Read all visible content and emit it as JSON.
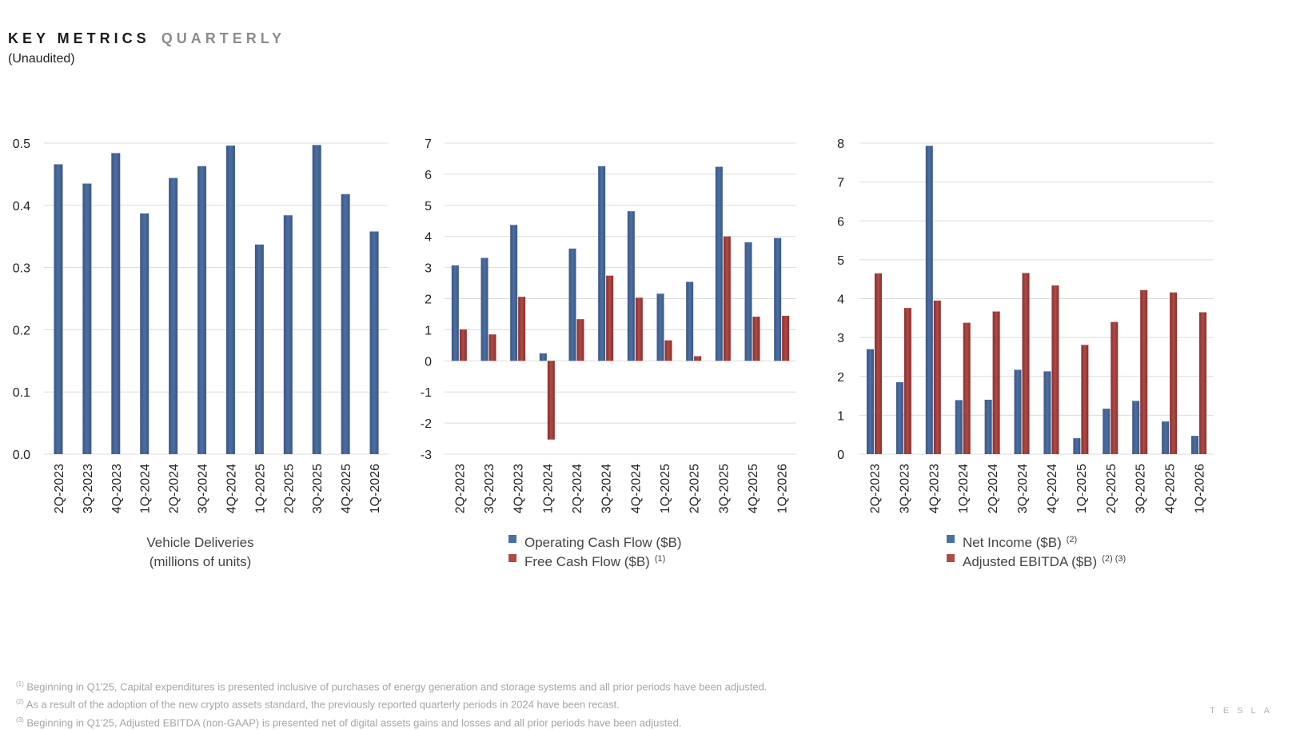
{
  "header": {
    "title_main": "KEY METRICS",
    "title_accent": "QUARTERLY",
    "subtitle": "(Unaudited)"
  },
  "colors": {
    "blue": "#4a6fa5",
    "blue_dark": "#3b5782",
    "red": "#b04a46",
    "red_dark": "#8a2f2c",
    "grid": "#dcdcdc"
  },
  "chart_data": [
    {
      "type": "bar",
      "categories": [
        "2Q-2023",
        "3Q-2023",
        "4Q-2023",
        "1Q-2024",
        "2Q-2024",
        "3Q-2024",
        "4Q-2024",
        "1Q-2025",
        "2Q-2025",
        "3Q-2025",
        "4Q-2025",
        "1Q-2026"
      ],
      "series": [
        {
          "name": "Vehicle Deliveries",
          "values": [
            0.466,
            0.435,
            0.484,
            0.387,
            0.444,
            0.463,
            0.496,
            0.337,
            0.384,
            0.497,
            0.418,
            0.358
          ]
        }
      ],
      "ylim": [
        0,
        0.5
      ],
      "yticks": [
        "0.0",
        "0.1",
        "0.2",
        "0.3",
        "0.4",
        "0.5"
      ],
      "ytick_values": [
        0,
        0.1,
        0.2,
        0.3,
        0.4,
        0.5
      ],
      "xlabel_lines": [
        "Vehicle Deliveries",
        "(millions of units)"
      ],
      "grid": true
    },
    {
      "type": "bar",
      "categories": [
        "2Q-2023",
        "3Q-2023",
        "4Q-2023",
        "1Q-2024",
        "2Q-2024",
        "3Q-2024",
        "4Q-2024",
        "1Q-2025",
        "2Q-2025",
        "3Q-2025",
        "4Q-2025",
        "1Q-2026"
      ],
      "series": [
        {
          "name": "Operating Cash Flow ($B)",
          "sup": "",
          "values": [
            3.07,
            3.31,
            4.37,
            0.24,
            3.61,
            6.26,
            4.81,
            2.16,
            2.54,
            6.24,
            3.81,
            3.95
          ]
        },
        {
          "name": "Free Cash Flow ($B)",
          "sup": "(1)",
          "values": [
            1.01,
            0.85,
            2.06,
            -2.53,
            1.34,
            2.74,
            2.03,
            0.66,
            0.15,
            4.0,
            1.42,
            1.45
          ]
        }
      ],
      "ylim": [
        -3,
        7
      ],
      "yticks": [
        "-3",
        "-2",
        "-1",
        "0",
        "1",
        "2",
        "3",
        "4",
        "5",
        "6",
        "7"
      ],
      "ytick_values": [
        -3,
        -2,
        -1,
        0,
        1,
        2,
        3,
        4,
        5,
        6,
        7
      ],
      "grid": true
    },
    {
      "type": "bar",
      "categories": [
        "2Q-2023",
        "3Q-2023",
        "4Q-2023",
        "1Q-2024",
        "2Q-2024",
        "3Q-2024",
        "4Q-2024",
        "1Q-2025",
        "2Q-2025",
        "3Q-2025",
        "4Q-2025",
        "1Q-2026"
      ],
      "series": [
        {
          "name": "Net Income ($B)",
          "sup": "(2)",
          "values": [
            2.7,
            1.85,
            7.93,
            1.39,
            1.4,
            2.17,
            2.13,
            0.41,
            1.17,
            1.37,
            0.84,
            0.47
          ]
        },
        {
          "name": "Adjusted EBITDA ($B)",
          "sup": "(2) (3)",
          "values": [
            4.65,
            3.76,
            3.95,
            3.38,
            3.67,
            4.66,
            4.34,
            2.81,
            3.4,
            4.22,
            4.16,
            3.65
          ]
        }
      ],
      "ylim": [
        0,
        8
      ],
      "yticks": [
        "0",
        "1",
        "2",
        "3",
        "4",
        "5",
        "6",
        "7",
        "8"
      ],
      "ytick_values": [
        0,
        1,
        2,
        3,
        4,
        5,
        6,
        7,
        8
      ],
      "grid": true
    }
  ],
  "footnotes": [
    {
      "mark": "(1)",
      "text": "Beginning in Q1'25, Capital expenditures is presented inclusive of purchases of energy generation and storage systems and all prior periods have been adjusted."
    },
    {
      "mark": "(2)",
      "text": "As a result of the adoption of the new crypto assets standard, the previously reported quarterly periods in 2024 have been recast."
    },
    {
      "mark": "(3)",
      "text": "Beginning in Q1'25, Adjusted EBITDA (non-GAAP) is presented net of digital assets gains and losses and all prior periods have been adjusted."
    }
  ],
  "brand": "TESLA"
}
